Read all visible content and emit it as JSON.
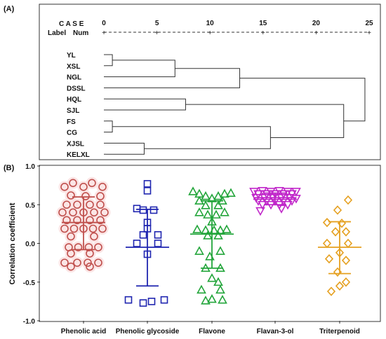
{
  "chart_data": [
    {
      "panel_label": "(A)",
      "type": "dendrogram",
      "header": {
        "case": "C A S E",
        "label": "Label",
        "num": "Num"
      },
      "scale_ticks": [
        0,
        5,
        10,
        15,
        20,
        25
      ],
      "leaves": [
        "YL",
        "XSL",
        "NGL",
        "DSSL",
        "HQL",
        "SJL",
        "FS",
        "CG",
        "XJSL",
        "KELXL"
      ],
      "merges": [
        {
          "a": "YL",
          "b": "XSL",
          "distance": 0.8
        },
        {
          "a": "FS",
          "b": "CG",
          "distance": 0.8
        },
        {
          "a": "XJSL",
          "b": "KELXL",
          "distance": 3.8
        },
        {
          "a": "YL+XSL",
          "b": "NGL",
          "distance": 6.7
        },
        {
          "a": "HQL",
          "b": "SJL",
          "distance": 7.7
        },
        {
          "a": "YL+XSL+NGL",
          "b": "DSSL",
          "distance": 12.8
        },
        {
          "a": "FS+CG",
          "b": "XJSL+KELXL",
          "distance": 15.7
        },
        {
          "a": "HQL+SJL",
          "b": "FS+CG+XJSL+KELXL",
          "distance": 22.6
        },
        {
          "a": "YL+XSL+NGL+DSSL",
          "b": "HQL+SJL+FS+CG+XJSL+KELXL",
          "distance": 24.6
        }
      ]
    },
    {
      "panel_label": "(B)",
      "type": "scatter",
      "ylabel": "Correlation coefficient",
      "ylim": [
        -1.0,
        1.0
      ],
      "y_ticks": [
        1.0,
        0.5,
        0.0,
        -0.5,
        -1.0
      ],
      "y_tick_labels": [
        "1.0",
        "0.5",
        "0.0",
        "-0.5",
        "-1.0"
      ],
      "categories": [
        "Phenolic acid",
        "Phenolic glycoside",
        "Flavone",
        "Flavan-3-ol",
        "Triterpenoid"
      ],
      "series": [
        {
          "marker": "circle",
          "color": "#c0504d",
          "fill": "#fbe5e5",
          "mean": 0.27,
          "sd_low": -0.08,
          "sd_high": 0.6,
          "points": [
            {
              "dx": -0.5,
              "y": 0.78
            },
            {
              "dx": 0.4,
              "y": 0.78
            },
            {
              "dx": -0.9,
              "y": 0.73
            },
            {
              "dx": 0.0,
              "y": 0.73
            },
            {
              "dx": 0.9,
              "y": 0.73
            },
            {
              "dx": -0.6,
              "y": 0.62
            },
            {
              "dx": 0.1,
              "y": 0.61
            },
            {
              "dx": 0.8,
              "y": 0.61
            },
            {
              "dx": -0.8,
              "y": 0.5
            },
            {
              "dx": -0.3,
              "y": 0.5
            },
            {
              "dx": 0.3,
              "y": 0.5
            },
            {
              "dx": 0.8,
              "y": 0.5
            },
            {
              "dx": -1.0,
              "y": 0.4
            },
            {
              "dx": -0.5,
              "y": 0.4
            },
            {
              "dx": 0.0,
              "y": 0.4
            },
            {
              "dx": 0.5,
              "y": 0.4
            },
            {
              "dx": 1.0,
              "y": 0.4
            },
            {
              "dx": -0.8,
              "y": 0.3
            },
            {
              "dx": -0.3,
              "y": 0.3
            },
            {
              "dx": 0.3,
              "y": 0.3
            },
            {
              "dx": 0.8,
              "y": 0.3
            },
            {
              "dx": -0.9,
              "y": 0.19
            },
            {
              "dx": -0.45,
              "y": 0.19
            },
            {
              "dx": 0.0,
              "y": 0.19
            },
            {
              "dx": 0.45,
              "y": 0.19
            },
            {
              "dx": 0.9,
              "y": 0.19
            },
            {
              "dx": -0.6,
              "y": 0.09
            },
            {
              "dx": 0.5,
              "y": 0.09
            },
            {
              "dx": -0.7,
              "y": -0.05
            },
            {
              "dx": -0.25,
              "y": -0.05
            },
            {
              "dx": 0.25,
              "y": -0.05
            },
            {
              "dx": 0.7,
              "y": -0.05
            },
            {
              "dx": -0.6,
              "y": -0.13
            },
            {
              "dx": 0.3,
              "y": -0.13
            },
            {
              "dx": -0.9,
              "y": -0.25
            },
            {
              "dx": -0.3,
              "y": -0.25
            },
            {
              "dx": 0.2,
              "y": -0.25
            },
            {
              "dx": 0.7,
              "y": -0.25
            },
            {
              "dx": -0.6,
              "y": -0.3
            },
            {
              "dx": 0.3,
              "y": -0.3
            }
          ]
        },
        {
          "marker": "square",
          "color": "#1f25b0",
          "fill": "none",
          "mean": -0.05,
          "sd_low": -0.55,
          "sd_high": 0.44,
          "points": [
            {
              "dx": 0.0,
              "y": 0.77
            },
            {
              "dx": 0.0,
              "y": 0.68
            },
            {
              "dx": -0.5,
              "y": 0.45
            },
            {
              "dx": -0.2,
              "y": 0.43
            },
            {
              "dx": 0.3,
              "y": 0.43
            },
            {
              "dx": 0.0,
              "y": 0.27
            },
            {
              "dx": 0.0,
              "y": 0.19
            },
            {
              "dx": -0.2,
              "y": 0.11
            },
            {
              "dx": 0.5,
              "y": 0.11
            },
            {
              "dx": -0.5,
              "y": 0.0
            },
            {
              "dx": 0.5,
              "y": 0.0
            },
            {
              "dx": 0.0,
              "y": -0.14
            },
            {
              "dx": -0.9,
              "y": -0.73
            },
            {
              "dx": -0.2,
              "y": -0.77
            },
            {
              "dx": 0.2,
              "y": -0.75
            },
            {
              "dx": 0.8,
              "y": -0.73
            }
          ]
        },
        {
          "marker": "triangle-up",
          "color": "#22a53a",
          "fill": "none",
          "mean": 0.12,
          "sd_low": -0.32,
          "sd_high": 0.55,
          "points": [
            {
              "dx": -0.9,
              "y": 0.67
            },
            {
              "dx": -0.6,
              "y": 0.64
            },
            {
              "dx": -0.3,
              "y": 0.61
            },
            {
              "dx": 0.0,
              "y": 0.58
            },
            {
              "dx": 0.3,
              "y": 0.61
            },
            {
              "dx": 0.6,
              "y": 0.64
            },
            {
              "dx": 0.9,
              "y": 0.65
            },
            {
              "dx": -0.6,
              "y": 0.55
            },
            {
              "dx": 0.5,
              "y": 0.55
            },
            {
              "dx": -0.3,
              "y": 0.49
            },
            {
              "dx": 0.3,
              "y": 0.49
            },
            {
              "dx": -0.6,
              "y": 0.4
            },
            {
              "dx": -0.2,
              "y": 0.37
            },
            {
              "dx": 0.2,
              "y": 0.37
            },
            {
              "dx": 0.6,
              "y": 0.4
            },
            {
              "dx": 0.0,
              "y": 0.28
            },
            {
              "dx": -0.7,
              "y": 0.18
            },
            {
              "dx": -0.3,
              "y": 0.17
            },
            {
              "dx": 0.1,
              "y": 0.17
            },
            {
              "dx": 0.4,
              "y": 0.17
            },
            {
              "dx": 0.7,
              "y": 0.18
            },
            {
              "dx": -0.2,
              "y": 0.1
            },
            {
              "dx": 0.3,
              "y": 0.1
            },
            {
              "dx": -0.6,
              "y": -0.1
            },
            {
              "dx": 0.4,
              "y": -0.1
            },
            {
              "dx": -0.1,
              "y": -0.17
            },
            {
              "dx": -0.3,
              "y": -0.32
            },
            {
              "dx": 0.4,
              "y": -0.32
            },
            {
              "dx": 0.0,
              "y": -0.45
            },
            {
              "dx": 0.3,
              "y": -0.5
            },
            {
              "dx": -0.5,
              "y": -0.6
            },
            {
              "dx": 0.4,
              "y": -0.6
            },
            {
              "dx": 0.0,
              "y": -0.72
            },
            {
              "dx": -0.3,
              "y": -0.74
            },
            {
              "dx": 0.5,
              "y": -0.73
            }
          ]
        },
        {
          "marker": "triangle-down",
          "color": "#c026c9",
          "fill": "none",
          "mean": 0.57,
          "sd_low": 0.5,
          "sd_high": 0.65,
          "points": [
            {
              "dx": -1.0,
              "y": 0.67
            },
            {
              "dx": -0.6,
              "y": 0.68
            },
            {
              "dx": -0.2,
              "y": 0.67
            },
            {
              "dx": 0.2,
              "y": 0.68
            },
            {
              "dx": 0.6,
              "y": 0.67
            },
            {
              "dx": 1.0,
              "y": 0.67
            },
            {
              "dx": -0.8,
              "y": 0.64
            },
            {
              "dx": -0.4,
              "y": 0.64
            },
            {
              "dx": 0.0,
              "y": 0.64
            },
            {
              "dx": 0.4,
              "y": 0.64
            },
            {
              "dx": 0.8,
              "y": 0.64
            },
            {
              "dx": -0.9,
              "y": 0.59
            },
            {
              "dx": -0.5,
              "y": 0.59
            },
            {
              "dx": -0.1,
              "y": 0.59
            },
            {
              "dx": 0.3,
              "y": 0.59
            },
            {
              "dx": 0.7,
              "y": 0.59
            },
            {
              "dx": 1.0,
              "y": 0.58
            },
            {
              "dx": -0.8,
              "y": 0.55
            },
            {
              "dx": -0.4,
              "y": 0.55
            },
            {
              "dx": 0.0,
              "y": 0.55
            },
            {
              "dx": 0.4,
              "y": 0.55
            },
            {
              "dx": 0.8,
              "y": 0.55
            },
            {
              "dx": -0.6,
              "y": 0.5
            },
            {
              "dx": -0.2,
              "y": 0.5
            },
            {
              "dx": 0.2,
              "y": 0.5
            },
            {
              "dx": 0.6,
              "y": 0.5
            },
            {
              "dx": 0.3,
              "y": 0.45
            },
            {
              "dx": -0.7,
              "y": 0.42
            }
          ]
        },
        {
          "marker": "diamond",
          "color": "#e5a020",
          "fill": "none",
          "mean": -0.05,
          "sd_low": -0.39,
          "sd_high": 0.28,
          "points": [
            {
              "dx": 0.4,
              "y": 0.56
            },
            {
              "dx": -0.1,
              "y": 0.43
            },
            {
              "dx": -0.6,
              "y": 0.27
            },
            {
              "dx": 0.1,
              "y": 0.26
            },
            {
              "dx": -0.2,
              "y": 0.15
            },
            {
              "dx": 0.3,
              "y": 0.15
            },
            {
              "dx": -0.6,
              "y": 0.0
            },
            {
              "dx": 0.4,
              "y": 0.0
            },
            {
              "dx": 0.0,
              "y": -0.12
            },
            {
              "dx": -0.5,
              "y": -0.2
            },
            {
              "dx": 0.3,
              "y": -0.22
            },
            {
              "dx": -0.1,
              "y": -0.37
            },
            {
              "dx": 0.3,
              "y": -0.5
            },
            {
              "dx": 0.0,
              "y": -0.55
            },
            {
              "dx": -0.4,
              "y": -0.62
            }
          ]
        }
      ]
    }
  ]
}
